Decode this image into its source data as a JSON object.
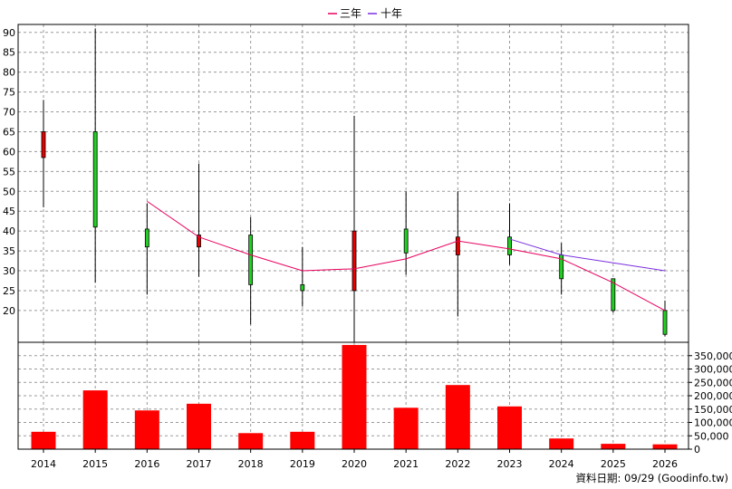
{
  "chart_data": {
    "type": "candlestick",
    "legend": [
      {
        "name": "三年",
        "color": "#e8005f"
      },
      {
        "name": "十年",
        "color": "#7b2fe0"
      }
    ],
    "categories": [
      "2014",
      "2015",
      "2016",
      "2017",
      "2018",
      "2019",
      "2020",
      "2021",
      "2022",
      "2023",
      "2024",
      "2025",
      "2026"
    ],
    "price_axis": {
      "min": 12,
      "max": 92,
      "ticks": [
        20,
        25,
        30,
        35,
        40,
        45,
        50,
        55,
        60,
        65,
        70,
        75,
        80,
        85,
        90
      ]
    },
    "volume_axis": {
      "min": 0,
      "max": 400000,
      "tick_values": [
        0,
        50000,
        100000,
        150000,
        200000,
        250000,
        300000,
        350000
      ],
      "tick_labels": [
        "0",
        "50,000",
        "100,000",
        "150,000",
        "200,000",
        "250,000",
        "300,000",
        "350,000"
      ]
    },
    "candles": [
      {
        "year": "2014",
        "open": 58.5,
        "close": 65,
        "high": 73,
        "low": 46,
        "color": "red"
      },
      {
        "year": "2015",
        "open": 65,
        "close": 41,
        "high": 91,
        "low": 27,
        "color": "green"
      },
      {
        "year": "2016",
        "open": 40.5,
        "close": 36,
        "high": 47,
        "low": 24,
        "color": "green"
      },
      {
        "year": "2017",
        "open": 36,
        "close": 39,
        "high": 57,
        "low": 28.5,
        "color": "red"
      },
      {
        "year": "2018",
        "open": 39,
        "close": 26.5,
        "high": 43.5,
        "low": 16.5,
        "color": "green"
      },
      {
        "year": "2019",
        "open": 26.5,
        "close": 25,
        "high": 36,
        "low": 21,
        "color": "green"
      },
      {
        "year": "2020",
        "open": 25,
        "close": 40,
        "high": 69,
        "low": 12,
        "color": "red"
      },
      {
        "year": "2021",
        "open": 40.5,
        "close": 34.5,
        "high": 50,
        "low": 29,
        "color": "green"
      },
      {
        "year": "2022",
        "open": 34,
        "close": 38.5,
        "high": 50,
        "low": 18.5,
        "color": "red"
      },
      {
        "year": "2023",
        "open": 38.5,
        "close": 34,
        "high": 47,
        "low": 31.5,
        "color": "green"
      },
      {
        "year": "2024",
        "open": 34,
        "close": 28,
        "high": 37,
        "low": 24,
        "color": "green"
      },
      {
        "year": "2025",
        "open": 28,
        "close": 20,
        "high": 28,
        "low": 19.5,
        "color": "green"
      },
      {
        "year": "2026",
        "open": 20,
        "close": 14,
        "high": 22.5,
        "low": 13.5,
        "color": "green"
      }
    ],
    "series": [
      {
        "name": "三年",
        "color": "#e8005f",
        "x": [
          "2016",
          "2017",
          "2018",
          "2019",
          "2020",
          "2021",
          "2022",
          "2023",
          "2024",
          "2025",
          "2026"
        ],
        "values": [
          47.5,
          38.5,
          34,
          30,
          30.5,
          33,
          37.5,
          35.5,
          33,
          27,
          20
        ]
      },
      {
        "name": "十年",
        "color": "#7b2fe0",
        "x": [
          "2023",
          "2024",
          "2025",
          "2026"
        ],
        "values": [
          38,
          34,
          32,
          30
        ]
      }
    ],
    "volume": [
      65000,
      220000,
      145000,
      170000,
      60000,
      65000,
      390000,
      155000,
      240000,
      160000,
      40000,
      20000,
      18000
    ],
    "grid": true
  },
  "footer": {
    "text": "資料日期: 09/29  (Goodinfo.tw)"
  }
}
